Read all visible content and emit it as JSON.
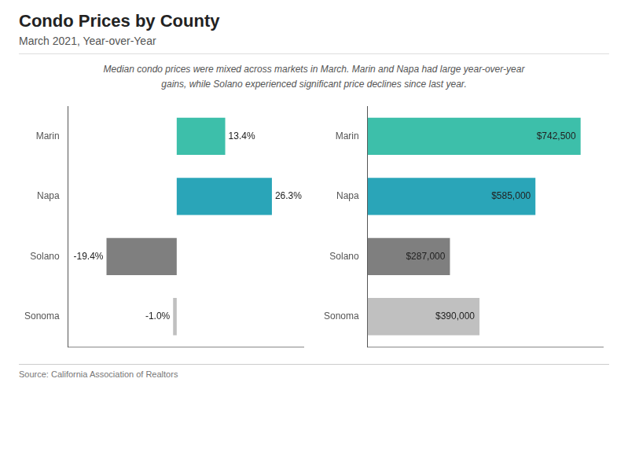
{
  "chart_data": [
    {
      "type": "bar",
      "orientation": "horizontal",
      "title": "Condo Prices by County",
      "subtitle": "March 2021, Year-over-Year",
      "annotations": [
        "Median condo prices were mixed across markets in March. Marin and Napa had large year-over-year",
        "gains, while Solano experienced significant price declines since last year.",
        "Source:  California Association of Realtors"
      ],
      "categories": [
        "Marin",
        "Napa",
        "Solano",
        "Sonoma"
      ],
      "values": [
        13.4,
        26.3,
        -19.4,
        -1.0
      ],
      "value_labels": [
        "13.4%",
        "26.3%",
        "-19.4%",
        "-1.0%"
      ],
      "data_labels": true,
      "colors": [
        "#3dbfaa",
        "#2aa5b8",
        "#7f7f7f",
        "#c0c0c0"
      ],
      "xlim": [
        -30,
        35
      ],
      "tick_labels": "y",
      "grid": false
    },
    {
      "type": "bar",
      "orientation": "horizontal",
      "categories": [
        "Marin",
        "Napa",
        "Solano",
        "Sonoma"
      ],
      "values": [
        742500,
        585000,
        287000,
        390000
      ],
      "value_labels": [
        "$742,500",
        "$585,000",
        "$287,000",
        "$390,000"
      ],
      "data_labels": true,
      "colors": [
        "#3dbfaa",
        "#2aa5b8",
        "#7f7f7f",
        "#c0c0c0"
      ],
      "xlim": [
        0,
        820000
      ],
      "tick_labels": "y",
      "grid": false
    }
  ]
}
